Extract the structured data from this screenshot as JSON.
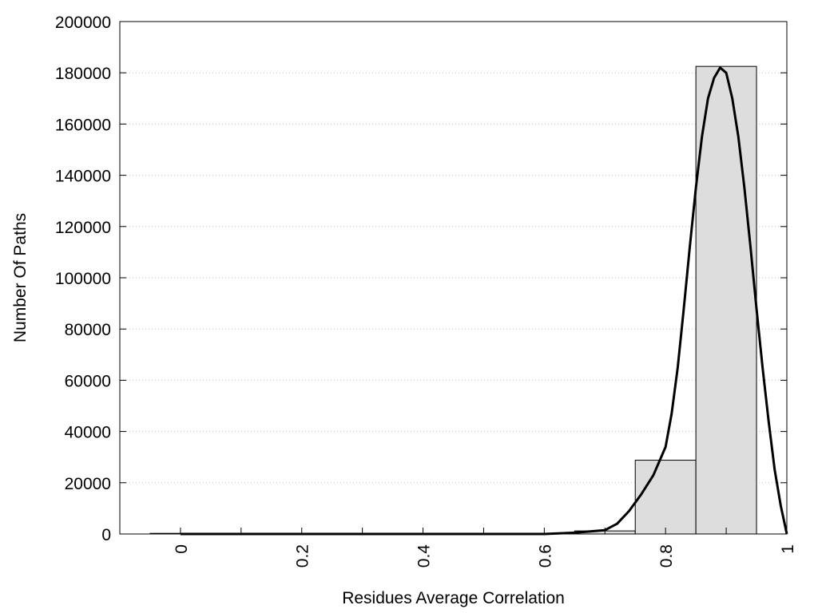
{
  "chart_data": {
    "type": "bar",
    "title": "",
    "xlabel": "Residues Average Correlation",
    "ylabel": "Number Of Paths",
    "xlim": [
      -0.1,
      1.0
    ],
    "ylim": [
      0,
      200000
    ],
    "xticks": [
      0,
      0.2,
      0.4,
      0.6,
      0.8,
      1
    ],
    "xtick_labels": [
      "0",
      "0.2",
      "0.4",
      "0.6",
      "0.8",
      "1"
    ],
    "yticks": [
      0,
      20000,
      40000,
      60000,
      80000,
      100000,
      120000,
      140000,
      160000,
      180000,
      200000
    ],
    "ytick_labels": [
      "0",
      "20000",
      "40000",
      "60000",
      "80000",
      "100000",
      "120000",
      "140000",
      "160000",
      "180000",
      "200000"
    ],
    "grid": "horizontal dotted",
    "bin_width": 0.1,
    "bars": [
      {
        "center": 0.0,
        "value": 0
      },
      {
        "center": 0.1,
        "value": 0
      },
      {
        "center": 0.2,
        "value": 0
      },
      {
        "center": 0.3,
        "value": 0
      },
      {
        "center": 0.4,
        "value": 0
      },
      {
        "center": 0.5,
        "value": 0
      },
      {
        "center": 0.6,
        "value": 0
      },
      {
        "center": 0.7,
        "value": 1200
      },
      {
        "center": 0.8,
        "value": 28800
      },
      {
        "center": 0.9,
        "value": 182500
      }
    ],
    "fit_curve": {
      "x": [
        0.0,
        0.2,
        0.4,
        0.6,
        0.65,
        0.7,
        0.72,
        0.74,
        0.76,
        0.78,
        0.8,
        0.81,
        0.82,
        0.83,
        0.84,
        0.85,
        0.86,
        0.87,
        0.88,
        0.89,
        0.9,
        0.91,
        0.92,
        0.93,
        0.94,
        0.95,
        0.96,
        0.97,
        0.98,
        0.99,
        1.0
      ],
      "y": [
        0,
        0,
        0,
        0,
        500,
        1500,
        4000,
        9000,
        15500,
        23000,
        34000,
        47000,
        65000,
        88000,
        112000,
        135000,
        155000,
        170000,
        178000,
        182000,
        180000,
        170000,
        155000,
        135000,
        112000,
        88000,
        65000,
        44000,
        25000,
        11000,
        0
      ]
    },
    "colors": {
      "bar_fill": "#dddddd",
      "bar_stroke": "#000000",
      "curve": "#000000",
      "grid": "#bbbbbb"
    }
  }
}
